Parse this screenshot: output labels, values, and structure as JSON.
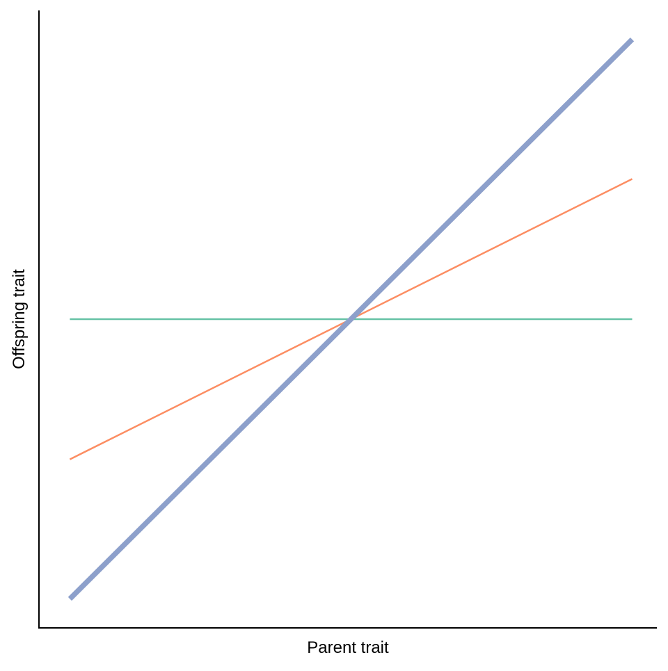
{
  "chart_data": {
    "type": "line",
    "title": "",
    "xlabel": "Parent trait",
    "ylabel": "Offspring trait",
    "xlim": [
      0,
      1
    ],
    "ylim": [
      0,
      1
    ],
    "grid": false,
    "legend": "none",
    "series": [
      {
        "x": [
          0.05,
          0.96
        ],
        "y": [
          0.5,
          0.5
        ],
        "color": "#66c2a5"
      },
      {
        "x": [
          0.05,
          0.96
        ],
        "y": [
          0.273,
          0.727
        ],
        "color": "#fc8d62"
      },
      {
        "x": [
          0.05,
          0.96
        ],
        "y": [
          0.047,
          0.953
        ],
        "color": "#8da0cb"
      }
    ]
  }
}
